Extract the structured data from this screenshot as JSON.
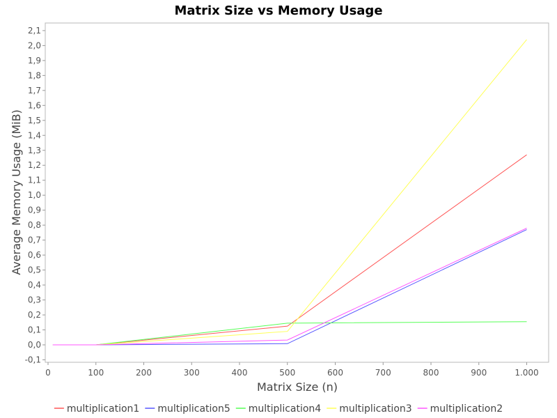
{
  "chart_data": {
    "type": "line",
    "title": "Matrix Size vs Memory Usage",
    "xlabel": "Matrix Size (n)",
    "ylabel": "Average Memory Usage (MiB)",
    "xlim": [
      0,
      1050
    ],
    "ylim": [
      -0.1,
      2.15
    ],
    "x_ticks": [
      0,
      100,
      200,
      300,
      400,
      500,
      600,
      700,
      800,
      900,
      1000
    ],
    "x_tick_labels": [
      "0",
      "100",
      "200",
      "300",
      "400",
      "500",
      "600",
      "700",
      "800",
      "900",
      "1.000"
    ],
    "y_ticks": [
      -0.1,
      0.0,
      0.1,
      0.2,
      0.3,
      0.4,
      0.5,
      0.6,
      0.7,
      0.8,
      0.9,
      1.0,
      1.1,
      1.2,
      1.3,
      1.4,
      1.5,
      1.6,
      1.7,
      1.8,
      1.9,
      2.0,
      2.1
    ],
    "y_tick_labels": [
      "-0,1",
      "0,0",
      "0,1",
      "0,2",
      "0,3",
      "0,4",
      "0,5",
      "0,6",
      "0,7",
      "0,8",
      "0,9",
      "1,0",
      "1,1",
      "1,2",
      "1,3",
      "1,4",
      "1,5",
      "1,6",
      "1,7",
      "1,8",
      "1,9",
      "2,0",
      "2,1"
    ],
    "grid": false,
    "legend_position": "bottom",
    "x": [
      10,
      100,
      500,
      1000
    ],
    "series": [
      {
        "name": "multiplication1",
        "color": "#ff5555",
        "values": [
          0.0,
          0.0,
          0.125,
          1.27
        ]
      },
      {
        "name": "multiplication5",
        "color": "#5555ff",
        "values": [
          0.0,
          0.0,
          0.008,
          0.77
        ]
      },
      {
        "name": "multiplication4",
        "color": "#55ff55",
        "values": [
          0.0,
          0.0,
          0.145,
          0.155
        ]
      },
      {
        "name": "multiplication3",
        "color": "#ffff55",
        "values": [
          0.0,
          0.0,
          0.09,
          2.04
        ]
      },
      {
        "name": "multiplication2",
        "color": "#ff55ff",
        "values": [
          0.0,
          0.0,
          0.032,
          0.78
        ]
      }
    ]
  }
}
